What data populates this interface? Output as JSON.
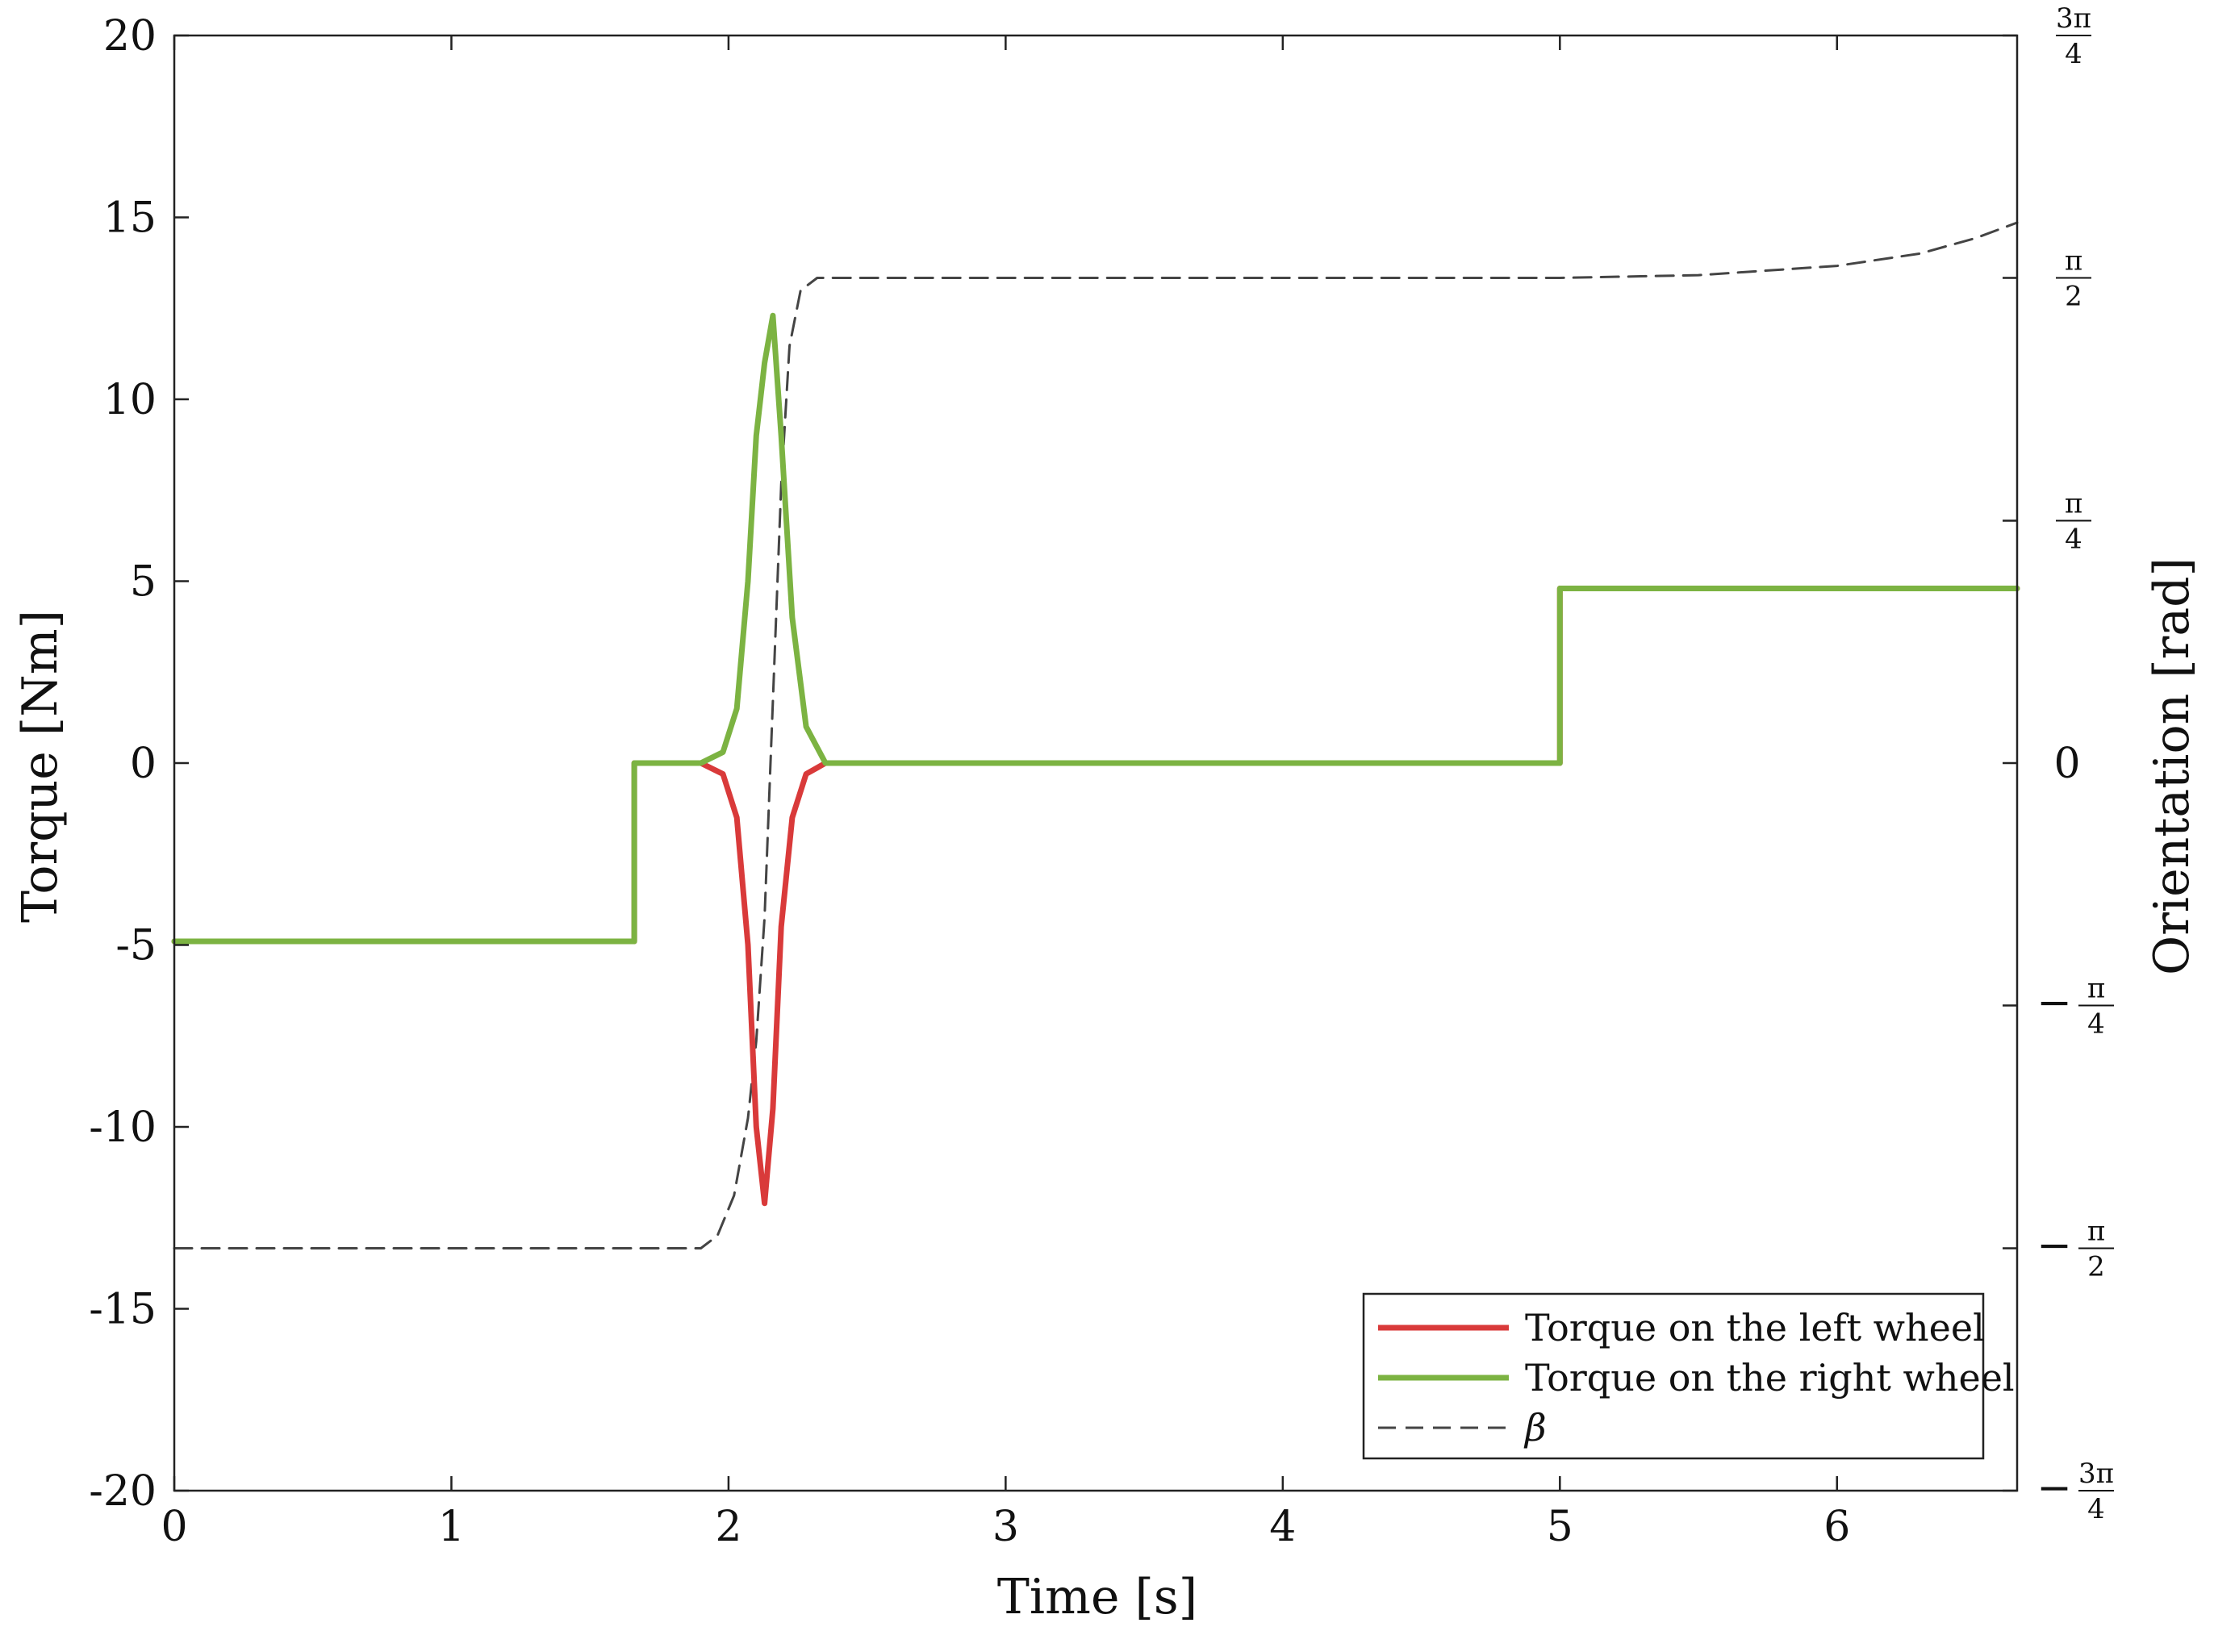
{
  "chart_data": {
    "type": "line",
    "title": "",
    "xlabel": "Time [s]",
    "ylabel": "Torque [Nm]",
    "y2label": "Orientation [rad]",
    "xlim": [
      0,
      6.65
    ],
    "ylim": [
      -20,
      20
    ],
    "y2lim": [
      -2.356,
      2.356
    ],
    "x_ticks": [
      0,
      1,
      2,
      3,
      4,
      5,
      6
    ],
    "x_tick_labels": [
      "0",
      "1",
      "2",
      "3",
      "4",
      "5",
      "6"
    ],
    "y_ticks": [
      -20,
      -15,
      -10,
      -5,
      0,
      5,
      10,
      15,
      20
    ],
    "y_tick_labels": [
      "-20",
      "-15",
      "-10",
      "-5",
      "0",
      "5",
      "10",
      "15",
      "20"
    ],
    "y2_ticks": [
      {
        "value": 2.356,
        "sign": "",
        "num": "3π",
        "den": "4"
      },
      {
        "value": 1.571,
        "sign": "",
        "num": "π",
        "den": "2"
      },
      {
        "value": 0.785,
        "sign": "",
        "num": "π",
        "den": "4"
      },
      {
        "value": 0,
        "plain": "0"
      },
      {
        "value": -0.785,
        "sign": "−",
        "num": "π",
        "den": "4"
      },
      {
        "value": -1.571,
        "sign": "−",
        "num": "π",
        "den": "2"
      },
      {
        "value": -2.356,
        "sign": "−",
        "num": "3π",
        "den": "4"
      }
    ],
    "grid": false,
    "legend_position": "bottom-right",
    "series": [
      {
        "name": "Torque on the left wheel",
        "color": "#d93a3a",
        "style": "solid",
        "axis": "left",
        "x": [
          0,
          1.66,
          1.66,
          1.9,
          1.98,
          2.03,
          2.07,
          2.1,
          2.13,
          2.16,
          2.19,
          2.23,
          2.28,
          2.35,
          2.45,
          5.0,
          5.0,
          6.65
        ],
        "y": [
          -4.9,
          -4.9,
          0,
          0,
          -0.3,
          -1.5,
          -5.0,
          -10.0,
          -12.1,
          -9.5,
          -4.5,
          -1.5,
          -0.3,
          0,
          0,
          0,
          4.8,
          4.8
        ]
      },
      {
        "name": "Torque on the right wheel",
        "color": "#7cb342",
        "style": "solid",
        "axis": "left",
        "x": [
          0,
          1.66,
          1.66,
          1.9,
          1.98,
          2.03,
          2.07,
          2.1,
          2.13,
          2.16,
          2.19,
          2.23,
          2.28,
          2.35,
          2.45,
          5.0,
          5.0,
          6.65
        ],
        "y": [
          -4.9,
          -4.9,
          0,
          0,
          0.3,
          1.5,
          5.0,
          9.0,
          11.0,
          12.3,
          9.0,
          4.0,
          1.0,
          0,
          0,
          0,
          4.8,
          4.8
        ]
      },
      {
        "name": "β",
        "color": "#444444",
        "style": "dashed",
        "axis": "right",
        "x": [
          0,
          1.9,
          1.96,
          2.02,
          2.07,
          2.1,
          2.13,
          2.16,
          2.19,
          2.22,
          2.26,
          2.32,
          2.4,
          5.0,
          5.5,
          6.0,
          6.3,
          6.5,
          6.65
        ],
        "y": [
          -1.571,
          -1.571,
          -1.53,
          -1.4,
          -1.15,
          -0.9,
          -0.5,
          0.2,
          0.9,
          1.35,
          1.53,
          1.571,
          1.571,
          1.571,
          1.58,
          1.61,
          1.65,
          1.7,
          1.75
        ]
      }
    ]
  }
}
